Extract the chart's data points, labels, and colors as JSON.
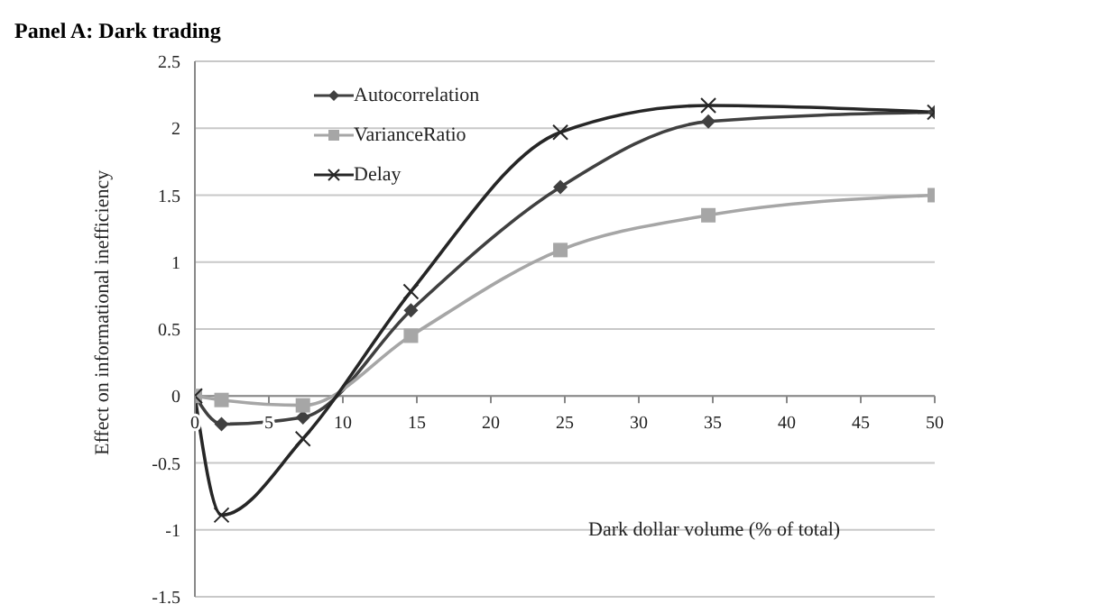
{
  "chart_data": {
    "type": "line",
    "title": "Panel A: Dark trading",
    "xlabel": "Dark dollar volume (% of total)",
    "ylabel": "Effect on informational inefficiency",
    "x": [
      0,
      1.8,
      7.3,
      14.6,
      24.7,
      34.7,
      50
    ],
    "series": [
      {
        "name": "Autocorrelation",
        "color": "#404040",
        "marker": "diamond",
        "values": [
          0,
          -0.21,
          -0.16,
          0.64,
          1.56,
          2.05,
          2.12
        ]
      },
      {
        "name": "VarianceRatio",
        "color": "#a6a6a6",
        "marker": "square",
        "values": [
          0,
          -0.03,
          -0.07,
          0.45,
          1.09,
          1.35,
          1.5
        ]
      },
      {
        "name": "Delay",
        "color": "#262626",
        "marker": "cross",
        "values": [
          0,
          -0.89,
          -0.32,
          0.78,
          1.97,
          2.17,
          2.12
        ]
      }
    ],
    "xlim": [
      0,
      50
    ],
    "xticks": [
      0,
      5,
      10,
      15,
      20,
      25,
      30,
      35,
      40,
      45,
      50
    ],
    "ylim": [
      -1.5,
      2.5
    ],
    "yticks": [
      -1.5,
      -1,
      -0.5,
      0,
      0.5,
      1,
      1.5,
      2,
      2.5
    ],
    "grid": "y",
    "legend": "top left",
    "line_style": "solid"
  }
}
